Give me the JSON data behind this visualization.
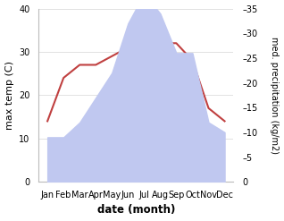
{
  "months": [
    "Jan",
    "Feb",
    "Mar",
    "Apr",
    "May",
    "Jun",
    "Jul",
    "Aug",
    "Sep",
    "Oct",
    "Nov",
    "Dec"
  ],
  "precipitation": [
    9,
    9,
    12,
    17,
    22,
    32,
    38,
    34,
    26,
    26,
    12,
    10
  ],
  "max_temp": [
    14,
    24,
    27,
    27,
    29,
    31,
    32,
    32,
    32,
    28,
    17,
    14
  ],
  "precip_color": "#c0c8f0",
  "temp_color": "#c04040",
  "ylabel_left": "max temp (C)",
  "ylabel_right": "med. precipitation (kg/m2)",
  "xlabel": "date (month)",
  "ylim_left": [
    0,
    40
  ],
  "ylim_right": [
    0,
    35
  ],
  "yticks_left": [
    0,
    10,
    20,
    30,
    40
  ],
  "yticks_right": [
    0,
    5,
    10,
    15,
    20,
    25,
    30,
    35
  ],
  "bg_color": "#ffffff"
}
